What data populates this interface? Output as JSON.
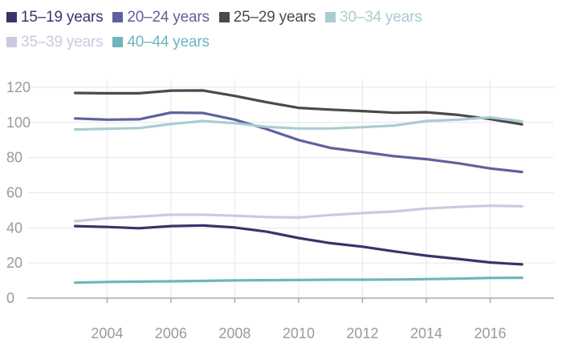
{
  "chart_data": {
    "type": "line",
    "title": "",
    "xlabel": "",
    "ylabel": "",
    "x": [
      2003,
      2004,
      2005,
      2006,
      2007,
      2008,
      2009,
      2010,
      2011,
      2012,
      2013,
      2014,
      2015,
      2016,
      2017
    ],
    "xticks": [
      2004,
      2006,
      2008,
      2010,
      2012,
      2014,
      2016
    ],
    "xlim": [
      2001.5,
      2018
    ],
    "yticks": [
      0,
      20,
      40,
      60,
      80,
      100,
      120
    ],
    "ylim": [
      0,
      125
    ],
    "grid": true,
    "legend_position": "top-left",
    "series": [
      {
        "name": "15–19 years",
        "color": "#35356b",
        "values": [
          41,
          40.5,
          39.8,
          41,
          41.4,
          40.2,
          37.8,
          34.2,
          31.3,
          29.3,
          26.6,
          24.2,
          22.3,
          20.3,
          19.2
        ]
      },
      {
        "name": "20–24 years",
        "color": "#5f619c",
        "values": [
          102.3,
          101.6,
          101.8,
          105.6,
          105.4,
          101.6,
          96.2,
          90,
          85.5,
          83.2,
          80.8,
          79.1,
          76.8,
          73.8,
          71.8
        ]
      },
      {
        "name": "25–29 years",
        "color": "#4a4a4a",
        "values": [
          116.8,
          116.6,
          116.6,
          118.1,
          118.2,
          115.1,
          111.5,
          108.3,
          107.3,
          106.5,
          105.5,
          105.8,
          104.3,
          101.9,
          98.9
        ]
      },
      {
        "name": "30–34 years",
        "color": "#a8cdd1",
        "values": [
          96,
          96.4,
          96.8,
          99.1,
          100.8,
          99.6,
          97.5,
          96.6,
          96.6,
          97.3,
          98.2,
          100.8,
          101.6,
          102.9,
          100.6
        ]
      },
      {
        "name": "35–39 years",
        "color": "#cbc9e0",
        "values": [
          43.8,
          45.5,
          46.4,
          47.5,
          47.5,
          46.9,
          46.1,
          45.9,
          47.3,
          48.4,
          49.3,
          51,
          51.9,
          52.6,
          52.3
        ]
      },
      {
        "name": "40–44 years",
        "color": "#6fb5bd",
        "values": [
          8.8,
          9.2,
          9.4,
          9.6,
          9.8,
          10.1,
          10.2,
          10.3,
          10.5,
          10.5,
          10.6,
          10.8,
          11.1,
          11.5,
          11.6
        ]
      }
    ]
  }
}
